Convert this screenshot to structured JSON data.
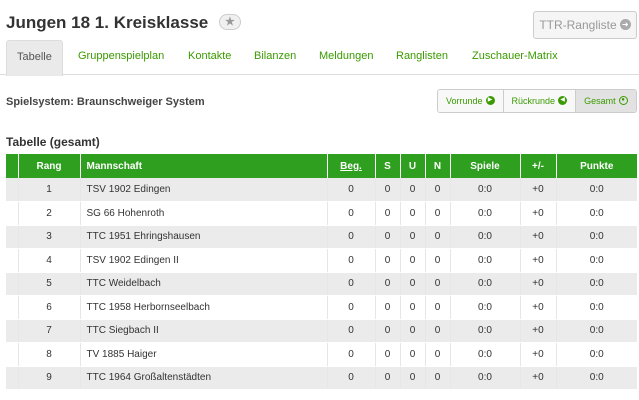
{
  "page": {
    "title": "Jungen 18 1. Kreisklasse",
    "star_icon": "star-icon",
    "ttr_button": "TTR-Rangliste",
    "ttr_icon": "arrow-right-circle-icon"
  },
  "tabs": [
    {
      "label": "Tabelle",
      "active": true
    },
    {
      "label": "Gruppenspielplan",
      "active": false
    },
    {
      "label": "Kontakte",
      "active": false
    },
    {
      "label": "Bilanzen",
      "active": false
    },
    {
      "label": "Meldungen",
      "active": false
    },
    {
      "label": "Ranglisten",
      "active": false
    },
    {
      "label": "Zuschauer-Matrix",
      "active": false
    }
  ],
  "spielsystem": "Spielsystem: Braunschweiger System",
  "phases": [
    {
      "label": "Vorrunde",
      "icon": "arrow-right-circle-icon",
      "active": false
    },
    {
      "label": "Rückrunde",
      "icon": "arrow-left-circle-icon",
      "active": false
    },
    {
      "label": "Gesamt",
      "icon": "radio-circle-icon",
      "active": true
    }
  ],
  "section_title": "Tabelle (gesamt)",
  "table": {
    "headers": {
      "rang": "Rang",
      "mannschaft": "Mannschaft",
      "beg": "Beg.",
      "s": "S",
      "u": "U",
      "n": "N",
      "spiele": "Spiele",
      "diff": "+/-",
      "punkte": "Punkte"
    },
    "rows": [
      {
        "rang": "1",
        "mannschaft": "TSV 1902 Edingen",
        "beg": "0",
        "s": "0",
        "u": "0",
        "n": "0",
        "spiele": "0:0",
        "diff": "+0",
        "punkte": "0:0"
      },
      {
        "rang": "2",
        "mannschaft": "SG 66 Hohenroth",
        "beg": "0",
        "s": "0",
        "u": "0",
        "n": "0",
        "spiele": "0:0",
        "diff": "+0",
        "punkte": "0:0"
      },
      {
        "rang": "3",
        "mannschaft": "TTC 1951 Ehringshausen",
        "beg": "0",
        "s": "0",
        "u": "0",
        "n": "0",
        "spiele": "0:0",
        "diff": "+0",
        "punkte": "0:0"
      },
      {
        "rang": "4",
        "mannschaft": "TSV 1902 Edingen II",
        "beg": "0",
        "s": "0",
        "u": "0",
        "n": "0",
        "spiele": "0:0",
        "diff": "+0",
        "punkte": "0:0"
      },
      {
        "rang": "5",
        "mannschaft": "TTC Weidelbach",
        "beg": "0",
        "s": "0",
        "u": "0",
        "n": "0",
        "spiele": "0:0",
        "diff": "+0",
        "punkte": "0:0"
      },
      {
        "rang": "6",
        "mannschaft": "TTC 1958 Herbornseelbach",
        "beg": "0",
        "s": "0",
        "u": "0",
        "n": "0",
        "spiele": "0:0",
        "diff": "+0",
        "punkte": "0:0"
      },
      {
        "rang": "7",
        "mannschaft": "TTC Siegbach II",
        "beg": "0",
        "s": "0",
        "u": "0",
        "n": "0",
        "spiele": "0:0",
        "diff": "+0",
        "punkte": "0:0"
      },
      {
        "rang": "8",
        "mannschaft": "TV 1885 Haiger",
        "beg": "0",
        "s": "0",
        "u": "0",
        "n": "0",
        "spiele": "0:0",
        "diff": "+0",
        "punkte": "0:0"
      },
      {
        "rang": "9",
        "mannschaft": "TTC 1964 Großaltenstädten",
        "beg": "0",
        "s": "0",
        "u": "0",
        "n": "0",
        "spiele": "0:0",
        "diff": "+0",
        "punkte": "0:0"
      }
    ]
  },
  "colors": {
    "accent": "#3a9a00",
    "header_green": "#2e9f1f",
    "row_alt": "#ebebeb"
  }
}
